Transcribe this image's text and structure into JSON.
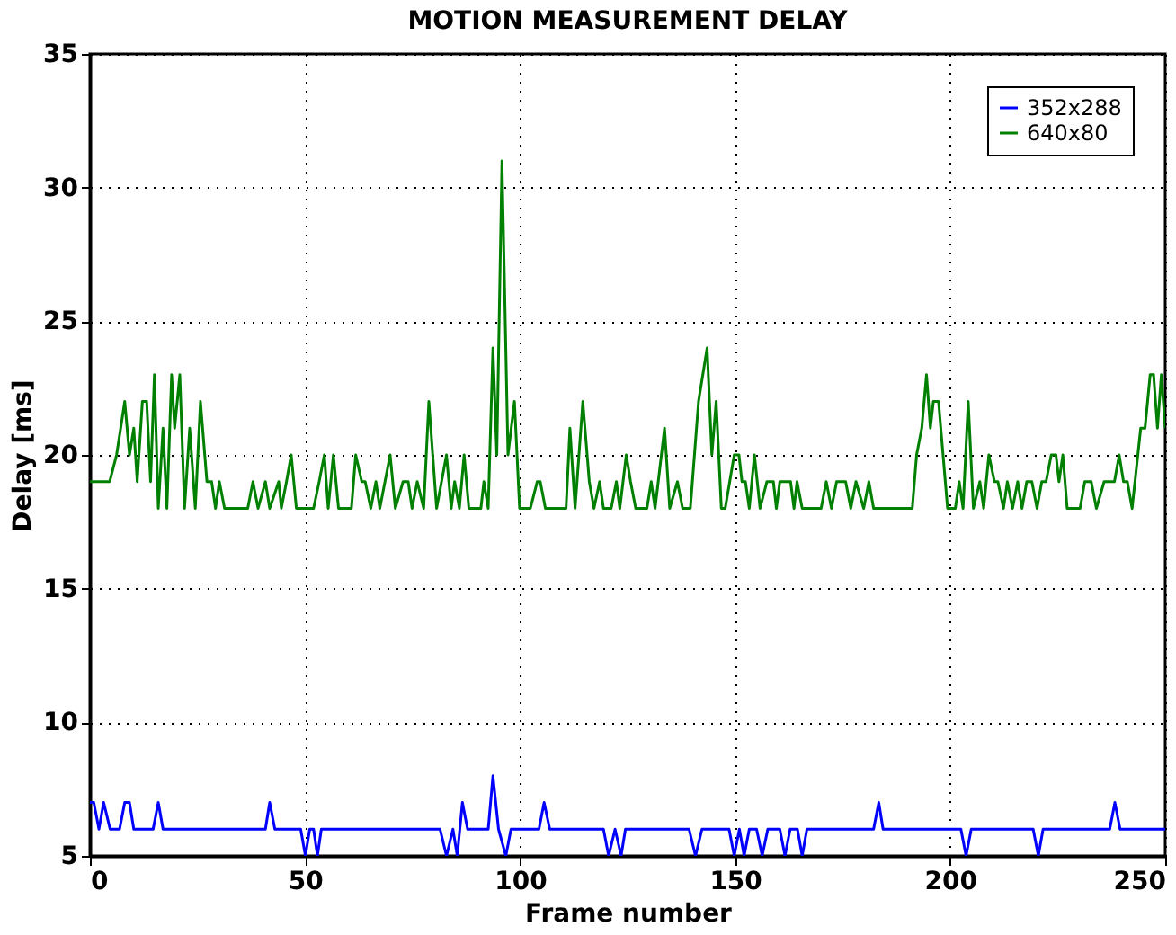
{
  "chart_data": {
    "type": "line",
    "title": "MOTION MEASUREMENT DELAY",
    "xlabel": "Frame number",
    "ylabel": "Delay [ms]",
    "xlim": [
      0,
      250
    ],
    "ylim": [
      5,
      35
    ],
    "xticks": [
      0,
      50,
      100,
      150,
      200,
      250
    ],
    "yticks": [
      5,
      10,
      15,
      20,
      25,
      30,
      35
    ],
    "grid": true,
    "legend": "top right",
    "line_style": "solid",
    "marker": "none",
    "series": [
      {
        "name": "352x288",
        "color": "#0000ff",
        "x": [
          0,
          0.9,
          2.1,
          3.2,
          4.7,
          6.9,
          8.1,
          9.2,
          10.2,
          14.7,
          15.9,
          17,
          40.8,
          41.8,
          43,
          49,
          50.1,
          51.1,
          52,
          52.9,
          53.8,
          81.4,
          82.9,
          84.4,
          85.4,
          86.6,
          87.8,
          92.6,
          93.7,
          95,
          96.7,
          97.9,
          104.4,
          105.6,
          106.9,
          119.4,
          120.6,
          122.1,
          123.5,
          124.5,
          139.3,
          140.8,
          142.3,
          148.6,
          149.8,
          151,
          152.1,
          153.3,
          155,
          156.3,
          157.6,
          160.4,
          161.6,
          162.8,
          164.5,
          165.6,
          166.7,
          182.2,
          183.4,
          184.4,
          202.5,
          203.7,
          204.9,
          219.3,
          220.5,
          221.6,
          237.1,
          238.3,
          239.5,
          250
        ],
        "values": [
          7,
          7,
          6,
          7,
          6,
          6,
          7,
          7,
          6,
          6,
          7,
          6,
          6,
          7,
          6,
          6,
          5,
          6,
          6,
          5,
          6,
          6,
          5,
          6,
          5,
          7,
          6,
          6,
          8,
          6,
          5,
          6,
          6,
          7,
          6,
          6,
          5,
          6,
          5,
          6,
          6,
          5,
          6,
          6,
          5,
          6,
          5,
          6,
          6,
          5,
          6,
          6,
          5,
          6,
          6,
          5,
          6,
          6,
          7,
          6,
          6,
          5,
          6,
          6,
          5,
          6,
          6,
          7,
          6,
          6
        ]
      },
      {
        "name": "640x80",
        "color": "#008000",
        "x": [
          0,
          4.6,
          6.2,
          8.1,
          9.2,
          10.2,
          11,
          12.2,
          13.2,
          14.1,
          15,
          15.9,
          17,
          17.9,
          19,
          19.7,
          20.9,
          22,
          23.2,
          24.5,
          25.7,
          27.2,
          28.3,
          29.2,
          30.1,
          31.3,
          36.7,
          37.9,
          39.1,
          40.8,
          41.8,
          43.9,
          44.5,
          45.7,
          46.8,
          48,
          52,
          53.3,
          54.5,
          55.4,
          56.6,
          57.8,
          60.8,
          61.8,
          63.2,
          64,
          65.3,
          66.5,
          67.4,
          69.8,
          71,
          72.8,
          74,
          74.9,
          76.1,
          77.6,
          78.8,
          80.6,
          82.9,
          84,
          84.8,
          85.9,
          87,
          88.1,
          90.9,
          91.6,
          92.6,
          93.7,
          94.6,
          95.8,
          97.2,
          98.7,
          99.9,
          102.4,
          104,
          104.7,
          105.9,
          110.7,
          111.6,
          112.8,
          114.6,
          116.1,
          117.2,
          118.5,
          119.4,
          121.2,
          122.4,
          123.2,
          124.7,
          125.7,
          126.9,
          129.5,
          130.5,
          131.4,
          133.6,
          134.8,
          136.6,
          137.8,
          139.6,
          141.5,
          143.5,
          144.6,
          145.6,
          146.8,
          147.7,
          149.8,
          150.9,
          151.6,
          152.4,
          153.3,
          154.5,
          155.8,
          157.4,
          158.9,
          159.6,
          160.4,
          162.9,
          163.7,
          164.4,
          165.6,
          170,
          171.2,
          172.4,
          173.6,
          175.7,
          176.9,
          178.1,
          179.9,
          181.1,
          182.2,
          191.2,
          192.2,
          193.4,
          194.5,
          195.4,
          196.1,
          197.3,
          199.4,
          201.2,
          202.1,
          203,
          204.2,
          205.4,
          206.9,
          207.8,
          209,
          210.3,
          211.1,
          212.4,
          213.3,
          214.5,
          215.7,
          216.7,
          217.8,
          219,
          220.2,
          221.3,
          222.3,
          223.5,
          224.6,
          225.3,
          226.2,
          227.2,
          230.2,
          231.3,
          232.8,
          234,
          235.8,
          238.2,
          239.3,
          240.3,
          241.2,
          242.3,
          244.3,
          245.3,
          246.5,
          247.3,
          248.2,
          249.1,
          250
        ],
        "values": [
          19,
          19,
          20,
          22,
          20,
          21,
          19,
          22,
          22,
          19,
          23,
          18,
          21,
          18,
          23,
          21,
          23,
          18,
          21,
          18,
          22,
          19,
          19,
          18,
          19,
          18,
          18,
          19,
          18,
          19,
          18,
          19,
          18,
          19,
          20,
          18,
          18,
          19,
          20,
          18,
          20,
          18,
          18,
          20,
          19,
          19,
          18,
          19,
          18,
          20,
          18,
          19,
          19,
          18,
          19,
          18,
          22,
          18,
          20,
          18,
          19,
          18,
          20,
          18,
          18,
          19,
          18,
          24,
          20,
          31,
          20,
          22,
          18,
          18,
          19,
          19,
          18,
          18,
          21,
          18,
          22,
          19,
          18,
          19,
          18,
          18,
          19,
          18,
          20,
          19,
          18,
          18,
          19,
          18,
          21,
          18,
          19,
          18,
          18,
          22,
          24,
          20,
          22,
          18,
          18,
          20,
          20,
          19,
          19,
          18,
          20,
          18,
          19,
          19,
          18,
          19,
          19,
          18,
          19,
          18,
          18,
          19,
          18,
          19,
          19,
          18,
          19,
          18,
          19,
          18,
          18,
          20,
          21,
          23,
          21,
          22,
          22,
          18,
          18,
          19,
          18,
          22,
          18,
          19,
          18,
          20,
          19,
          19,
          18,
          19,
          18,
          19,
          18,
          19,
          19,
          18,
          19,
          19,
          20,
          20,
          19,
          20,
          18,
          18,
          19,
          19,
          18,
          19,
          19,
          20,
          19,
          19,
          18,
          21,
          21,
          23,
          23,
          21,
          23,
          21
        ]
      }
    ]
  }
}
